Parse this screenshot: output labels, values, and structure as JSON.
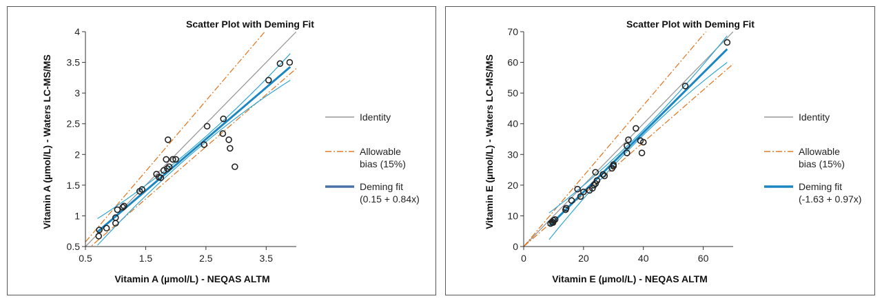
{
  "chart_data": [
    {
      "type": "scatter",
      "title": "Scatter Plot with Deming Fit",
      "xlabel": "Vitamin A (µmol/L) - NEQAS ALTM",
      "ylabel": "Vitamin A (µmol/L) - Waters LC-MS/MS",
      "xlim": [
        0.5,
        4.0
      ],
      "ylim": [
        0.5,
        4.0
      ],
      "x_ticks": [
        "0.5",
        "1.5",
        "2.5",
        "3.5"
      ],
      "x_tick_values": [
        0.5,
        1.5,
        2.5,
        3.5
      ],
      "y_ticks": [
        "0.5",
        "1",
        "1.5",
        "2",
        "2.5",
        "3",
        "3.5",
        "4"
      ],
      "y_tick_values": [
        0.5,
        1,
        1.5,
        2,
        2.5,
        3,
        3.5,
        4
      ],
      "points": [
        [
          0.72,
          0.67
        ],
        [
          0.73,
          0.77
        ],
        [
          0.85,
          0.8
        ],
        [
          1.0,
          0.88
        ],
        [
          1.0,
          0.97
        ],
        [
          1.03,
          1.1
        ],
        [
          1.12,
          1.14
        ],
        [
          1.14,
          1.16
        ],
        [
          1.4,
          1.4
        ],
        [
          1.44,
          1.43
        ],
        [
          1.68,
          1.68
        ],
        [
          1.72,
          1.63
        ],
        [
          1.75,
          1.62
        ],
        [
          1.8,
          1.74
        ],
        [
          1.84,
          1.92
        ],
        [
          1.86,
          1.77
        ],
        [
          1.87,
          2.24
        ],
        [
          1.89,
          1.8
        ],
        [
          1.95,
          1.92
        ],
        [
          2.0,
          1.92
        ],
        [
          2.47,
          2.16
        ],
        [
          2.52,
          2.46
        ],
        [
          2.78,
          2.34
        ],
        [
          2.79,
          2.58
        ],
        [
          2.88,
          2.24
        ],
        [
          2.9,
          2.1
        ],
        [
          2.98,
          1.8
        ],
        [
          3.54,
          3.21
        ],
        [
          3.73,
          3.48
        ],
        [
          3.89,
          3.5
        ]
      ],
      "fit": {
        "intercept": 0.15,
        "slope": 0.84,
        "x_range": [
          0.7,
          3.9
        ]
      },
      "allowable_bias": 0.15,
      "legend": {
        "identity": "Identity",
        "bias_line1": "Allowable",
        "bias_line2": "bias (15%)",
        "fit_line1": "Deming fit",
        "fit_line2": "(0.15 + 0.84x)"
      }
    },
    {
      "type": "scatter",
      "title": "Scatter Plot with Deming Fit",
      "xlabel": "Vitamin E (µmol/L) - NEQAS ALTM",
      "ylabel": "Vitamin E (µmol/L) - Waters LC-MS/MS",
      "xlim": [
        0,
        70
      ],
      "ylim": [
        0,
        70
      ],
      "x_ticks": [
        "0",
        "20",
        "40",
        "60"
      ],
      "x_tick_values": [
        0,
        20,
        40,
        60
      ],
      "y_ticks": [
        "0",
        "10",
        "20",
        "30",
        "40",
        "50",
        "60",
        "70"
      ],
      "y_tick_values": [
        0,
        10,
        20,
        30,
        40,
        50,
        60,
        70
      ],
      "points": [
        [
          9.0,
          7.5
        ],
        [
          9.5,
          8.0
        ],
        [
          10.0,
          8.5
        ],
        [
          10.5,
          8.8
        ],
        [
          9.8,
          7.8
        ],
        [
          14.0,
          12.0
        ],
        [
          14.2,
          12.5
        ],
        [
          16.0,
          15.0
        ],
        [
          18.0,
          18.7
        ],
        [
          19.0,
          16.3
        ],
        [
          20.0,
          17.8
        ],
        [
          22.0,
          18.3
        ],
        [
          23.0,
          19.0
        ],
        [
          23.5,
          20.0
        ],
        [
          24.0,
          20.5
        ],
        [
          24.0,
          24.2
        ],
        [
          24.5,
          21.5
        ],
        [
          26.5,
          23.5
        ],
        [
          27.0,
          23.0
        ],
        [
          29.5,
          25.5
        ],
        [
          30.0,
          26.2
        ],
        [
          30.0,
          26.7
        ],
        [
          34.5,
          30.5
        ],
        [
          34.5,
          32.8
        ],
        [
          35.0,
          34.8
        ],
        [
          37.5,
          38.5
        ],
        [
          39.0,
          34.5
        ],
        [
          39.5,
          30.5
        ],
        [
          40.0,
          34.0
        ],
        [
          54.0,
          52.3
        ],
        [
          68.0,
          66.5
        ]
      ],
      "fit": {
        "intercept": -1.63,
        "slope": 0.97,
        "x_range": [
          8.5,
          68
        ]
      },
      "allowable_bias": 0.15,
      "legend": {
        "identity": "Identity",
        "bias_line1": "Allowable",
        "bias_line2": "bias (15%)",
        "fit_line1": "Deming fit",
        "fit_line2": "(-1.63 + 0.97x)"
      }
    }
  ],
  "colors": {
    "identity": "#999999",
    "bias": "#E07B28",
    "fit": "#1B86C1",
    "ci": "#2EA6D4",
    "point": "#222222",
    "axis": "#333333",
    "legend_fit_a": "#4A72A8",
    "legend_fit_b": "#1B86C1"
  }
}
